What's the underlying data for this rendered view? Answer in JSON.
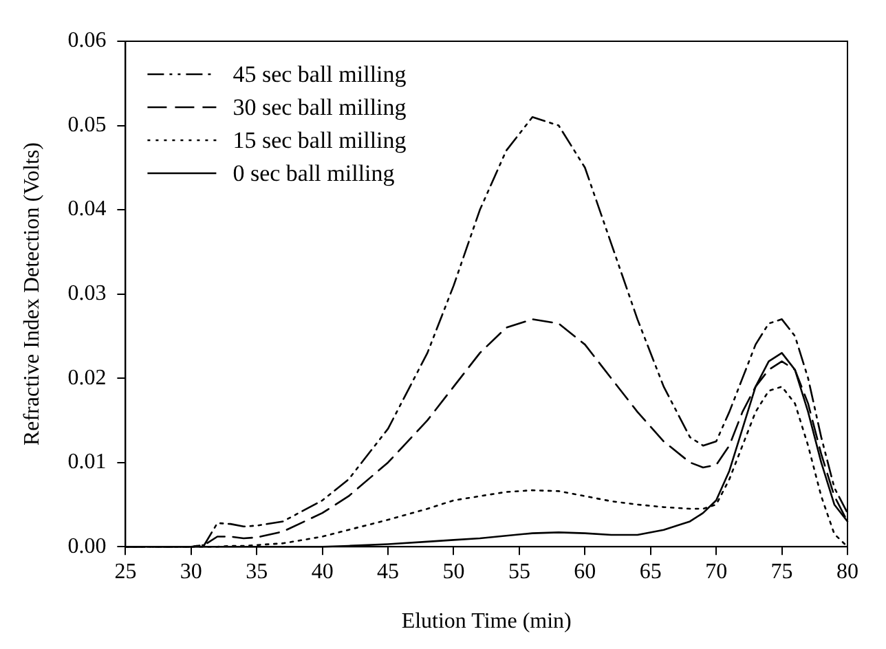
{
  "chart_data": {
    "type": "line",
    "xlabel": "Elution Time (min)",
    "ylabel": "Refractive Index Detection (Volts)",
    "x": [
      25,
      28,
      30,
      31,
      32,
      33,
      34,
      35,
      37,
      40,
      42,
      45,
      48,
      50,
      52,
      54,
      56,
      58,
      60,
      62,
      64,
      66,
      68,
      69,
      70,
      71,
      72,
      73,
      74,
      75,
      76,
      77,
      78,
      79,
      80
    ],
    "series": [
      {
        "name": "45 sec ball milling",
        "color": "#000000",
        "line_style": "dashdotdot",
        "values": [
          0,
          0,
          0,
          0.0002,
          0.0028,
          0.0027,
          0.0024,
          0.0025,
          0.003,
          0.0055,
          0.008,
          0.014,
          0.023,
          0.031,
          0.04,
          0.047,
          0.051,
          0.05,
          0.045,
          0.036,
          0.027,
          0.019,
          0.013,
          0.012,
          0.0125,
          0.016,
          0.02,
          0.024,
          0.0265,
          0.027,
          0.025,
          0.02,
          0.013,
          0.007,
          0.004
        ]
      },
      {
        "name": "30 sec ball milling",
        "color": "#000000",
        "line_style": "dashed",
        "values": [
          0,
          0,
          0,
          0.0002,
          0.0012,
          0.0012,
          0.001,
          0.0011,
          0.0018,
          0.004,
          0.006,
          0.01,
          0.015,
          0.019,
          0.023,
          0.026,
          0.027,
          0.0265,
          0.024,
          0.02,
          0.016,
          0.0125,
          0.01,
          0.0094,
          0.0097,
          0.012,
          0.016,
          0.019,
          0.021,
          0.022,
          0.021,
          0.017,
          0.011,
          0.006,
          0.003
        ]
      },
      {
        "name": "15 sec ball milling",
        "color": "#000000",
        "line_style": "dotted",
        "values": [
          0,
          0,
          0,
          0,
          0,
          0.0001,
          0.0001,
          0.0002,
          0.0004,
          0.0012,
          0.002,
          0.0032,
          0.0045,
          0.0055,
          0.006,
          0.0065,
          0.0067,
          0.0066,
          0.006,
          0.0054,
          0.005,
          0.0047,
          0.0045,
          0.0045,
          0.005,
          0.008,
          0.012,
          0.016,
          0.0185,
          0.019,
          0.017,
          0.012,
          0.006,
          0.0015,
          0
        ]
      },
      {
        "name": "0 sec ball milling",
        "color": "#000000",
        "line_style": "solid",
        "values": [
          0,
          0,
          0,
          0,
          0,
          0,
          0,
          0,
          0,
          0,
          0.0001,
          0.0003,
          0.0006,
          0.0008,
          0.001,
          0.0013,
          0.0016,
          0.0017,
          0.0016,
          0.0014,
          0.0014,
          0.002,
          0.003,
          0.004,
          0.0055,
          0.009,
          0.014,
          0.019,
          0.022,
          0.023,
          0.021,
          0.016,
          0.01,
          0.005,
          0.003
        ]
      }
    ],
    "xlim": [
      25,
      80
    ],
    "xticks": [
      25,
      30,
      35,
      40,
      45,
      50,
      55,
      60,
      65,
      70,
      75,
      80
    ],
    "ylim": [
      0,
      0.06
    ],
    "yticks": [
      {
        "value": 0,
        "label": "0.00"
      },
      {
        "value": 0.01,
        "label": "0.01"
      },
      {
        "value": 0.02,
        "label": "0.02"
      },
      {
        "value": 0.03,
        "label": "0.03"
      },
      {
        "value": 0.04,
        "label": "0.04"
      },
      {
        "value": 0.05,
        "label": "0.05"
      },
      {
        "value": 0.06,
        "label": "0.06"
      }
    ],
    "grid": false,
    "legend": "top left",
    "marker": "none"
  }
}
